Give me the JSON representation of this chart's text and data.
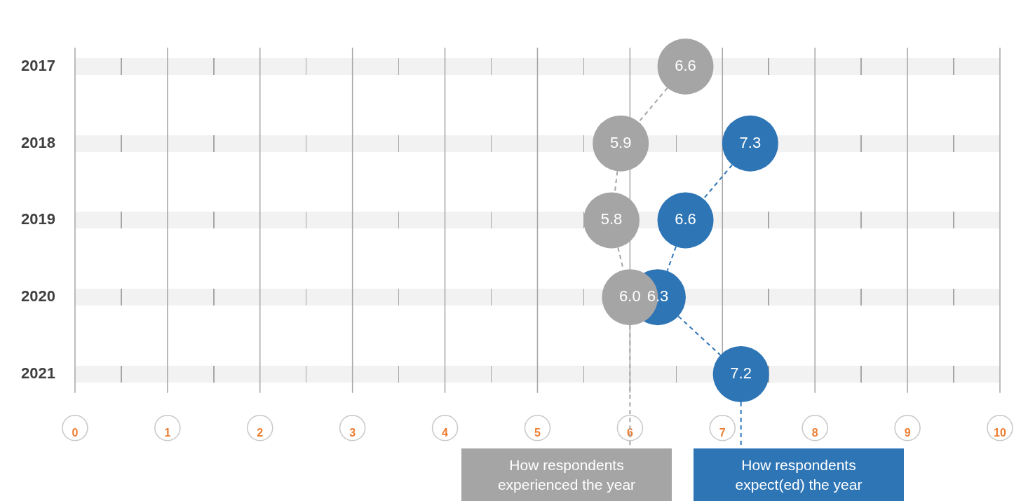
{
  "chart_data": {
    "type": "bubble",
    "orientation": "horizontal",
    "categories": [
      "2017",
      "2018",
      "2019",
      "2020",
      "2021"
    ],
    "xlim": [
      0,
      10
    ],
    "xticks": [
      0,
      1,
      2,
      3,
      4,
      5,
      6,
      7,
      8,
      9,
      10
    ],
    "series": [
      {
        "name": "How respondents experienced the year",
        "color": "#a5a5a5",
        "values": [
          6.6,
          5.9,
          5.8,
          6.0,
          null
        ],
        "value_labels": [
          "6.6",
          "5.9",
          "5.8",
          "6.0",
          null
        ]
      },
      {
        "name": "How respondents expect(ed) the year",
        "color": "#2e75b6",
        "values": [
          null,
          7.3,
          6.6,
          6.3,
          7.2
        ],
        "value_labels": [
          null,
          "7.3",
          "6.6",
          "6.3",
          "7.2"
        ]
      }
    ],
    "line_style": "dashed",
    "legend": "bottom",
    "grid": "x"
  }
}
